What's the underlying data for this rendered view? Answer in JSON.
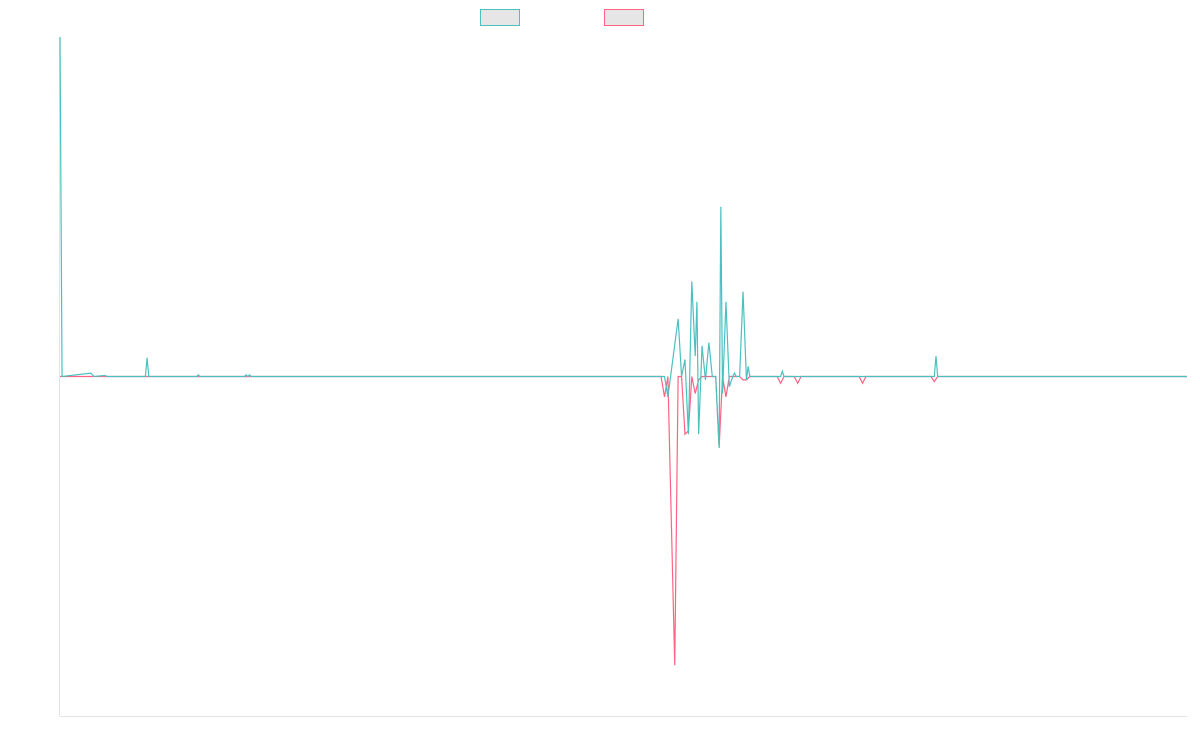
{
  "chart_data": {
    "type": "line",
    "title": "",
    "xlabel": "",
    "ylabel": "",
    "xlim": [
      0,
      330
    ],
    "ylim": [
      -100,
      100
    ],
    "grid": false,
    "legend_placement": "top-center",
    "series": [
      {
        "color": "#4bc0c0",
        "fill": "#e6e6e6",
        "points": [
          [
            0,
            100
          ],
          [
            0.6,
            0
          ],
          [
            9,
            1
          ],
          [
            10,
            0
          ],
          [
            13,
            0.3
          ],
          [
            14,
            0
          ],
          [
            25,
            0
          ],
          [
            25.5,
            5.5
          ],
          [
            26,
            0
          ],
          [
            40,
            0
          ],
          [
            40.5,
            0.5
          ],
          [
            41,
            0
          ],
          [
            54,
            0
          ],
          [
            54.5,
            0.5
          ],
          [
            55,
            0
          ],
          [
            55.5,
            0.5
          ],
          [
            56,
            0
          ],
          [
            177,
            0
          ],
          [
            178,
            -6
          ],
          [
            181,
            17
          ],
          [
            182,
            0
          ],
          [
            183,
            5
          ],
          [
            184,
            -17
          ],
          [
            185,
            28
          ],
          [
            186,
            6
          ],
          [
            186.5,
            22
          ],
          [
            187,
            -17
          ],
          [
            188,
            9
          ],
          [
            189,
            -1
          ],
          [
            190,
            10
          ],
          [
            191,
            0
          ],
          [
            192,
            0
          ],
          [
            193,
            -21
          ],
          [
            193.5,
            50
          ],
          [
            194,
            -5
          ],
          [
            195,
            22
          ],
          [
            196,
            -3
          ],
          [
            197,
            0
          ],
          [
            197.5,
            1
          ],
          [
            198,
            0
          ],
          [
            199,
            0
          ],
          [
            200,
            25
          ],
          [
            201,
            -1
          ],
          [
            201.5,
            3
          ],
          [
            202,
            0
          ],
          [
            203,
            0
          ],
          [
            211,
            0
          ],
          [
            211.5,
            1.5
          ],
          [
            212,
            0
          ],
          [
            256,
            0
          ],
          [
            256.5,
            6
          ],
          [
            257,
            0
          ],
          [
            330,
            0
          ]
        ]
      },
      {
        "color": "#ff6384",
        "fill": "#e6e6e6",
        "points": [
          [
            0,
            0
          ],
          [
            176,
            0
          ],
          [
            177,
            -6
          ],
          [
            178,
            0
          ],
          [
            180,
            -85
          ],
          [
            181,
            0
          ],
          [
            182,
            0
          ],
          [
            183,
            -17
          ],
          [
            184,
            -16
          ],
          [
            185,
            0
          ],
          [
            186,
            -5
          ],
          [
            187,
            -1
          ],
          [
            188,
            0
          ],
          [
            192,
            0
          ],
          [
            193,
            -21
          ],
          [
            194,
            0
          ],
          [
            195,
            -6
          ],
          [
            196,
            0
          ],
          [
            199,
            0
          ],
          [
            200,
            -1
          ],
          [
            201,
            -1
          ],
          [
            202,
            0
          ],
          [
            210,
            0
          ],
          [
            211,
            -2
          ],
          [
            212,
            0
          ],
          [
            215,
            0
          ],
          [
            216,
            -2
          ],
          [
            217,
            0
          ],
          [
            234,
            0
          ],
          [
            235,
            -2
          ],
          [
            236,
            0
          ],
          [
            255,
            0
          ],
          [
            256,
            -1.5
          ],
          [
            257,
            0
          ],
          [
            330,
            0
          ]
        ]
      }
    ]
  }
}
